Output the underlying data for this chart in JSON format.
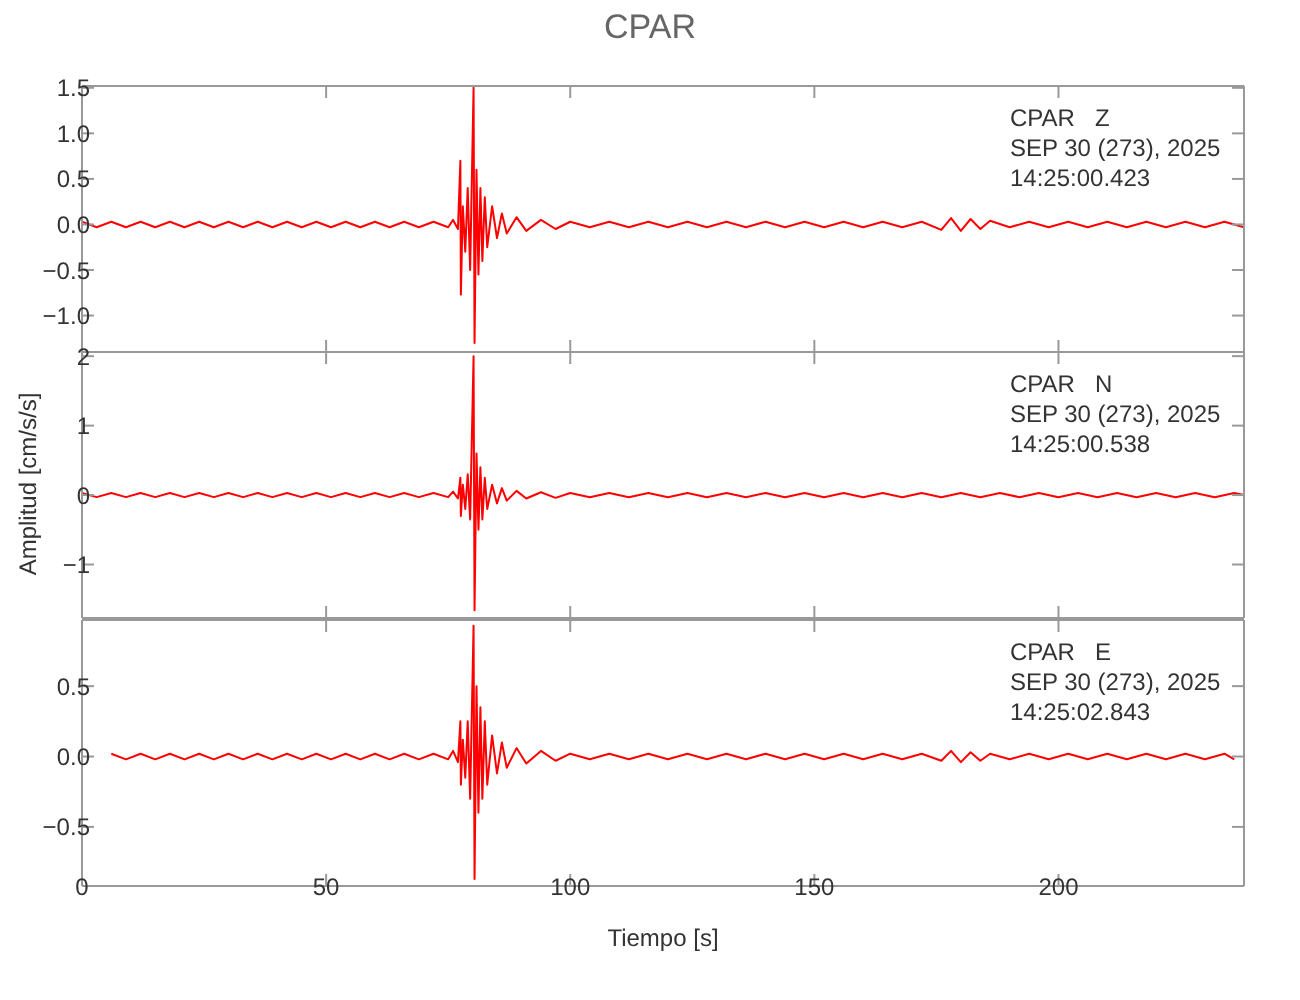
{
  "chart_data": [
    {
      "type": "line",
      "title": "CPAR",
      "annotations": [
        "CPAR   Z",
        "SEP 30 (273), 2025",
        "14:25:00.423"
      ],
      "xlim": [
        0,
        238
      ],
      "xticks": [
        0,
        50,
        100,
        150,
        200
      ],
      "ylim": [
        -1.4,
        1.52
      ],
      "yticks": [
        {
          "value": -1,
          "label": "−1.0"
        },
        {
          "value": -0.5,
          "label": "−0.5"
        },
        {
          "value": 0,
          "label": "0.0"
        },
        {
          "value": 0.5,
          "label": "0.5"
        },
        {
          "value": 1,
          "label": "1.0"
        },
        {
          "value": 1.5,
          "label": "1.5"
        }
      ],
      "tick_labels": "y",
      "marker": "none",
      "line_style": "solid",
      "series": [
        {
          "color": "#ff0000",
          "x": [
            0,
            3,
            6,
            9,
            12,
            15,
            18,
            21,
            24,
            27,
            30,
            33,
            36,
            39,
            42,
            45,
            48,
            51,
            54,
            57,
            60,
            63,
            66,
            69,
            72,
            75,
            76,
            77,
            77.5,
            77.6,
            78,
            78.5,
            79,
            79.5,
            80.2,
            80.4,
            80.8,
            81.2,
            81.6,
            82,
            82.5,
            83,
            84,
            85,
            86,
            87,
            89,
            91,
            94,
            97,
            100,
            104,
            108,
            112,
            116,
            120,
            124,
            128,
            132,
            136,
            140,
            144,
            148,
            152,
            156,
            160,
            164,
            168,
            172,
            176,
            178,
            180,
            182,
            184,
            186,
            190,
            194,
            198,
            202,
            206,
            210,
            214,
            218,
            222,
            226,
            230,
            234,
            238
          ],
          "values": [
            0.03,
            -0.03,
            0.03,
            -0.03,
            0.03,
            -0.03,
            0.03,
            -0.03,
            0.03,
            -0.03,
            0.03,
            -0.03,
            0.03,
            -0.03,
            0.03,
            -0.03,
            0.03,
            -0.03,
            0.03,
            -0.03,
            0.03,
            -0.03,
            0.03,
            -0.03,
            0.03,
            -0.03,
            0.05,
            -0.05,
            0.7,
            -0.77,
            0.2,
            -0.3,
            0.4,
            -0.5,
            1.5,
            -1.3,
            0.6,
            -0.55,
            0.4,
            -0.4,
            0.3,
            -0.25,
            0.2,
            -0.15,
            0.12,
            -0.1,
            0.08,
            -0.07,
            0.05,
            -0.05,
            0.03,
            -0.03,
            0.03,
            -0.03,
            0.03,
            -0.03,
            0.03,
            -0.03,
            0.03,
            -0.03,
            0.03,
            -0.03,
            0.03,
            -0.03,
            0.03,
            -0.03,
            0.03,
            -0.03,
            0.03,
            -0.06,
            0.07,
            -0.07,
            0.06,
            -0.05,
            0.04,
            -0.03,
            0.03,
            -0.03,
            0.03,
            -0.03,
            0.03,
            -0.03,
            0.03,
            -0.03,
            0.03,
            -0.03,
            0.03,
            -0.03
          ]
        }
      ]
    },
    {
      "type": "line",
      "ylabel": "Amplitud [cm/s/s]",
      "annotations": [
        "CPAR   N",
        "SEP 30 (273), 2025",
        "14:25:00.538"
      ],
      "xlim": [
        0,
        238
      ],
      "xticks": [
        0,
        50,
        100,
        150,
        200
      ],
      "ylim": [
        -1.77,
        2.06
      ],
      "yticks": [
        {
          "value": -1,
          "label": "−1"
        },
        0,
        1,
        2
      ],
      "tick_labels": "y",
      "marker": "none",
      "line_style": "solid",
      "series": [
        {
          "color": "#ff0000",
          "x": [
            0,
            3,
            6,
            9,
            12,
            15,
            18,
            21,
            24,
            27,
            30,
            33,
            36,
            39,
            42,
            45,
            48,
            51,
            54,
            57,
            60,
            63,
            66,
            69,
            72,
            75,
            76,
            77,
            77.5,
            77.6,
            78,
            78.5,
            79,
            79.5,
            80.2,
            80.4,
            80.8,
            81.2,
            81.6,
            82,
            82.5,
            83,
            84,
            85,
            86,
            87,
            89,
            91,
            94,
            97,
            100,
            104,
            108,
            112,
            116,
            120,
            124,
            128,
            132,
            136,
            140,
            144,
            148,
            152,
            156,
            160,
            164,
            168,
            172,
            176,
            180,
            184,
            188,
            192,
            196,
            200,
            204,
            208,
            212,
            216,
            220,
            224,
            228,
            232,
            236,
            238
          ],
          "values": [
            0.03,
            -0.03,
            0.03,
            -0.03,
            0.03,
            -0.03,
            0.03,
            -0.03,
            0.03,
            -0.03,
            0.03,
            -0.03,
            0.03,
            -0.03,
            0.03,
            -0.03,
            0.03,
            -0.03,
            0.03,
            -0.03,
            0.03,
            -0.03,
            0.03,
            -0.03,
            0.03,
            -0.03,
            0.05,
            -0.05,
            0.25,
            -0.3,
            0.15,
            -0.2,
            0.3,
            -0.35,
            2.0,
            -1.66,
            0.6,
            -0.5,
            0.4,
            -0.35,
            0.25,
            -0.2,
            0.15,
            -0.12,
            0.1,
            -0.08,
            0.06,
            -0.05,
            0.04,
            -0.04,
            0.03,
            -0.03,
            0.03,
            -0.03,
            0.03,
            -0.03,
            0.03,
            -0.03,
            0.03,
            -0.03,
            0.03,
            -0.03,
            0.03,
            -0.03,
            0.03,
            -0.03,
            0.03,
            -0.03,
            0.03,
            -0.03,
            0.03,
            -0.03,
            0.03,
            -0.03,
            0.03,
            -0.03,
            0.03,
            -0.03,
            0.03,
            -0.03,
            0.03,
            -0.03,
            0.03,
            -0.03,
            0.03,
            0.0
          ]
        }
      ]
    },
    {
      "type": "line",
      "xlabel": "Tiempo [s]",
      "annotations": [
        "CPAR   E",
        "SEP 30 (273), 2025",
        "14:25:02.843"
      ],
      "xlim": [
        0,
        238
      ],
      "xticks": [
        0,
        50,
        100,
        150,
        200
      ],
      "ylim": [
        -0.92,
        0.97
      ],
      "yticks": [
        {
          "value": -0.5,
          "label": "−0.5"
        },
        {
          "value": 0,
          "label": "0.0"
        },
        {
          "value": 0.5,
          "label": "0.5"
        }
      ],
      "marker": "none",
      "line_style": "solid",
      "series": [
        {
          "color": "#ff0000",
          "x": [
            6,
            9,
            12,
            15,
            18,
            21,
            24,
            27,
            30,
            33,
            36,
            39,
            42,
            45,
            48,
            51,
            54,
            57,
            60,
            63,
            66,
            69,
            72,
            75,
            76,
            77,
            77.5,
            77.6,
            78,
            78.5,
            79,
            79.5,
            80.2,
            80.4,
            80.8,
            81.2,
            81.6,
            82,
            82.5,
            83,
            84,
            85,
            86,
            87,
            89,
            91,
            94,
            97,
            100,
            104,
            108,
            112,
            116,
            120,
            124,
            128,
            132,
            136,
            140,
            144,
            148,
            152,
            156,
            160,
            164,
            168,
            172,
            176,
            178,
            180,
            182,
            184,
            186,
            190,
            194,
            198,
            202,
            206,
            210,
            214,
            218,
            222,
            226,
            230,
            234,
            236
          ],
          "values": [
            0.02,
            -0.02,
            0.02,
            -0.02,
            0.02,
            -0.02,
            0.02,
            -0.02,
            0.02,
            -0.02,
            0.02,
            -0.02,
            0.02,
            -0.02,
            0.02,
            -0.02,
            0.02,
            -0.02,
            0.02,
            -0.02,
            0.02,
            -0.02,
            0.02,
            -0.02,
            0.04,
            -0.04,
            0.25,
            -0.2,
            0.12,
            -0.15,
            0.25,
            -0.3,
            0.93,
            -0.87,
            0.5,
            -0.4,
            0.35,
            -0.3,
            0.25,
            -0.2,
            0.15,
            -0.12,
            0.1,
            -0.08,
            0.06,
            -0.05,
            0.04,
            -0.03,
            0.02,
            -0.02,
            0.02,
            -0.02,
            0.02,
            -0.02,
            0.02,
            -0.02,
            0.02,
            -0.02,
            0.02,
            -0.02,
            0.02,
            -0.02,
            0.02,
            -0.02,
            0.02,
            -0.02,
            0.02,
            -0.03,
            0.04,
            -0.04,
            0.03,
            -0.03,
            0.02,
            -0.02,
            0.02,
            -0.02,
            0.02,
            -0.02,
            0.02,
            -0.02,
            0.02,
            -0.02,
            0.02,
            -0.02,
            0.02,
            -0.02
          ]
        }
      ]
    }
  ]
}
